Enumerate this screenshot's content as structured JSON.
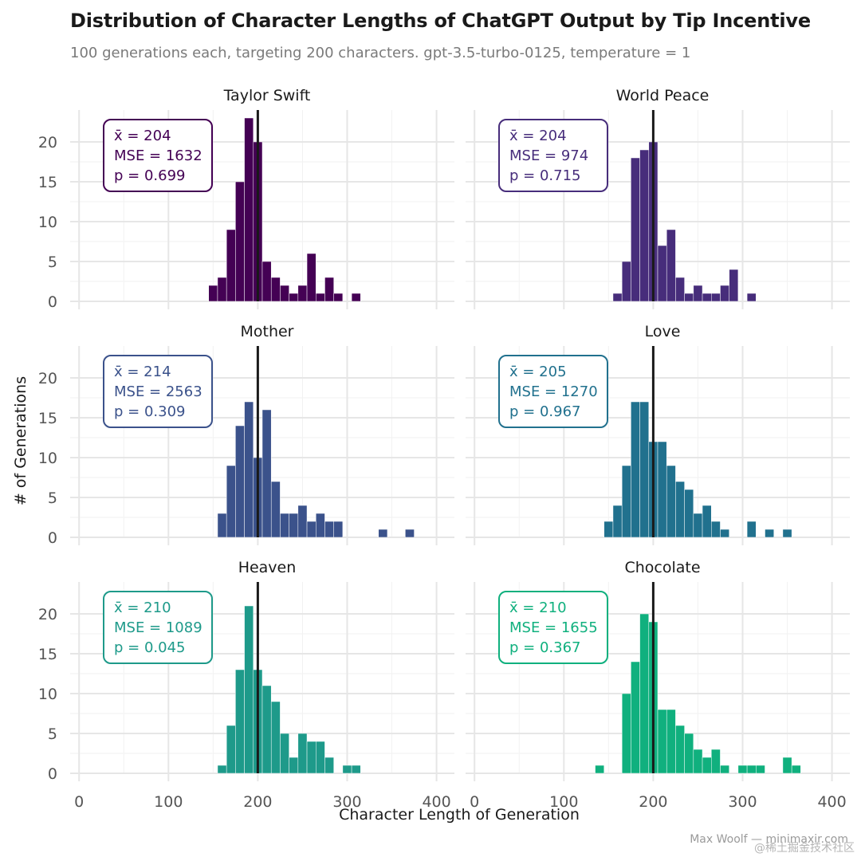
{
  "header": {
    "title": "Distribution of Character Lengths of ChatGPT Output by Tip Incentive",
    "subtitle": "100 generations each, targeting 200 characters. gpt-3.5-turbo-0125, temperature = 1"
  },
  "footer": {
    "credit": "Max Woolf — minimaxir.com",
    "watermark": "@稀土掘金技术社区"
  },
  "chart_data": {
    "type": "bar",
    "xlabel": "Character Length of Generation",
    "ylabel": "# of Generations",
    "xlim": [
      -10,
      420
    ],
    "ylim": [
      0,
      24
    ],
    "x_ticks": [
      0,
      100,
      200,
      300,
      400
    ],
    "y_ticks": [
      0,
      5,
      10,
      15,
      20
    ],
    "bin_width": 10,
    "target_line": 200,
    "grid": true,
    "layout": "facet grid, 3 rows × 2 columns",
    "panels": [
      {
        "name": "Taylor Swift",
        "color": "#440154",
        "annotation": {
          "mean": "x̄ = 204",
          "mse": "MSE = 1632",
          "p": "p = 0.699"
        },
        "bins": [
          [
            150,
            2
          ],
          [
            160,
            3
          ],
          [
            170,
            9
          ],
          [
            180,
            15
          ],
          [
            190,
            23
          ],
          [
            200,
            20
          ],
          [
            210,
            5
          ],
          [
            220,
            3
          ],
          [
            230,
            2
          ],
          [
            240,
            1
          ],
          [
            250,
            2
          ],
          [
            260,
            6
          ],
          [
            270,
            1
          ],
          [
            280,
            3
          ],
          [
            290,
            1
          ],
          [
            310,
            1
          ]
        ]
      },
      {
        "name": "World Peace",
        "color": "#472D7B",
        "annotation": {
          "mean": "x̄ = 204",
          "mse": "MSE = 974",
          "p": "p = 0.715"
        },
        "bins": [
          [
            160,
            1
          ],
          [
            170,
            5
          ],
          [
            180,
            18
          ],
          [
            190,
            19
          ],
          [
            200,
            20
          ],
          [
            210,
            7
          ],
          [
            220,
            9
          ],
          [
            230,
            3
          ],
          [
            240,
            1
          ],
          [
            250,
            2
          ],
          [
            260,
            1
          ],
          [
            270,
            1
          ],
          [
            280,
            2
          ],
          [
            290,
            4
          ],
          [
            310,
            1
          ]
        ]
      },
      {
        "name": "Mother",
        "color": "#3B528B",
        "annotation": {
          "mean": "x̄ = 214",
          "mse": "MSE = 2563",
          "p": "p = 0.309"
        },
        "bins": [
          [
            160,
            3
          ],
          [
            170,
            9
          ],
          [
            180,
            14
          ],
          [
            190,
            17
          ],
          [
            200,
            10
          ],
          [
            210,
            16
          ],
          [
            220,
            7
          ],
          [
            230,
            3
          ],
          [
            240,
            3
          ],
          [
            250,
            4
          ],
          [
            260,
            2
          ],
          [
            270,
            3
          ],
          [
            280,
            2
          ],
          [
            290,
            2
          ],
          [
            340,
            1
          ],
          [
            370,
            1
          ]
        ]
      },
      {
        "name": "Love",
        "color": "#21718E",
        "annotation": {
          "mean": "x̄ = 205",
          "mse": "MSE = 1270",
          "p": "p = 0.967"
        },
        "bins": [
          [
            150,
            2
          ],
          [
            160,
            4
          ],
          [
            170,
            9
          ],
          [
            180,
            17
          ],
          [
            190,
            17
          ],
          [
            200,
            12
          ],
          [
            210,
            12
          ],
          [
            220,
            9
          ],
          [
            230,
            7
          ],
          [
            240,
            6
          ],
          [
            250,
            3
          ],
          [
            260,
            4
          ],
          [
            270,
            2
          ],
          [
            280,
            1
          ],
          [
            310,
            2
          ],
          [
            330,
            1
          ],
          [
            350,
            1
          ]
        ]
      },
      {
        "name": "Heaven",
        "color": "#1E9A8A",
        "annotation": {
          "mean": "x̄ = 210",
          "mse": "MSE = 1089",
          "p": "p = 0.045"
        },
        "bins": [
          [
            160,
            1
          ],
          [
            170,
            6
          ],
          [
            180,
            13
          ],
          [
            190,
            21
          ],
          [
            200,
            13
          ],
          [
            210,
            11
          ],
          [
            220,
            9
          ],
          [
            230,
            5
          ],
          [
            240,
            2
          ],
          [
            250,
            5
          ],
          [
            260,
            4
          ],
          [
            270,
            4
          ],
          [
            280,
            2
          ],
          [
            300,
            1
          ],
          [
            310,
            1
          ]
        ]
      },
      {
        "name": "Chocolate",
        "color": "#10B07E",
        "annotation": {
          "mean": "x̄ = 210",
          "mse": "MSE = 1655",
          "p": "p = 0.367"
        },
        "bins": [
          [
            140,
            1
          ],
          [
            170,
            10
          ],
          [
            180,
            14
          ],
          [
            190,
            20
          ],
          [
            200,
            19
          ],
          [
            210,
            8
          ],
          [
            220,
            8
          ],
          [
            230,
            6
          ],
          [
            240,
            5
          ],
          [
            250,
            3
          ],
          [
            260,
            2
          ],
          [
            270,
            3
          ],
          [
            280,
            1
          ],
          [
            300,
            1
          ],
          [
            310,
            1
          ],
          [
            320,
            1
          ],
          [
            350,
            2
          ],
          [
            360,
            1
          ]
        ]
      }
    ]
  }
}
